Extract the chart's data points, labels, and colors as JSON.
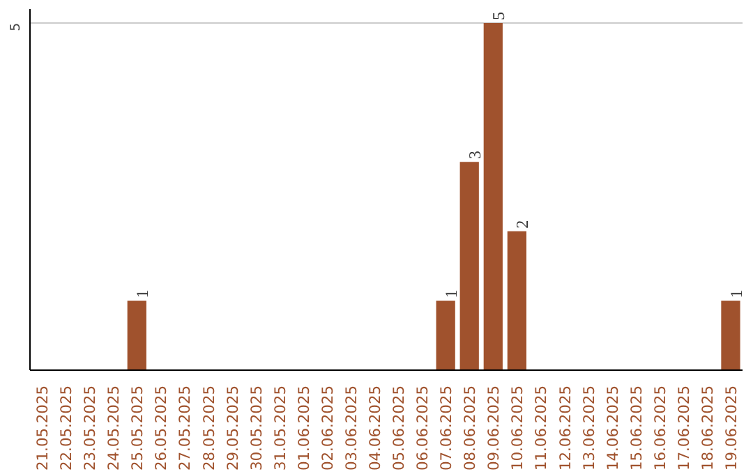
{
  "chart_data": {
    "type": "bar",
    "categories": [
      "21.05.2025",
      "22.05.2025",
      "23.05.2025",
      "24.05.2025",
      "25.05.2025",
      "26.05.2025",
      "27.05.2025",
      "28.05.2025",
      "29.05.2025",
      "30.05.2025",
      "31.05.2025",
      "01.06.2025",
      "02.06.2025",
      "03.06.2025",
      "04.06.2025",
      "05.06.2025",
      "06.06.2025",
      "07.06.2025",
      "08.06.2025",
      "09.06.2025",
      "10.06.2025",
      "11.06.2025",
      "12.06.2025",
      "13.06.2025",
      "14.06.2025",
      "15.06.2025",
      "16.06.2025",
      "17.06.2025",
      "18.06.2025",
      "19.06.2025"
    ],
    "values": [
      0,
      0,
      0,
      0,
      1,
      0,
      0,
      0,
      0,
      0,
      0,
      0,
      0,
      0,
      0,
      0,
      0,
      1,
      3,
      5,
      2,
      0,
      0,
      0,
      0,
      0,
      0,
      0,
      0,
      1
    ],
    "value_labels": [
      null,
      null,
      null,
      null,
      "1",
      null,
      null,
      null,
      null,
      null,
      null,
      null,
      null,
      null,
      null,
      null,
      null,
      "1",
      "3",
      "5",
      "2",
      null,
      null,
      null,
      null,
      null,
      null,
      null,
      null,
      "1"
    ],
    "color": "#a0522d",
    "ylim": [
      0,
      5.2
    ],
    "yticks": [
      5
    ],
    "grid": "y"
  }
}
